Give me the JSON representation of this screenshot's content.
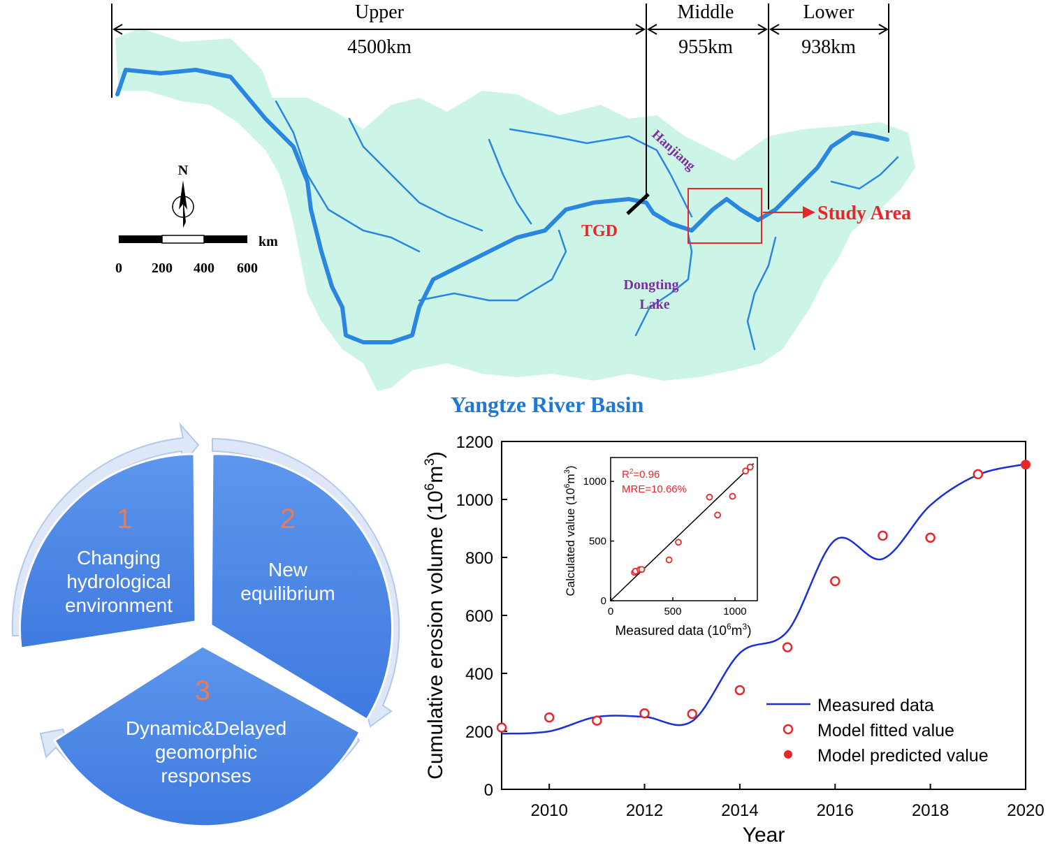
{
  "map": {
    "segments": [
      {
        "label": "Upper",
        "length": "4500km"
      },
      {
        "label": "Middle",
        "length": "955km"
      },
      {
        "label": "Lower",
        "length": "938km"
      }
    ],
    "north": "N",
    "scale_unit": "km",
    "scale_ticks": [
      "0",
      "200",
      "400",
      "600"
    ],
    "dam_label": "TGD",
    "tributary_label": "Hanjiang",
    "lake_label_1": "Dongting",
    "lake_label_2": "Lake",
    "study_area_label": "Study Area",
    "basin_title": "Yangtze River Basin",
    "colors": {
      "basin": "#ccf5e8",
      "river": "#2a86e0",
      "accent_red": "#e8262a",
      "purple": "#7b2fa0",
      "title_blue": "#1f78d1"
    }
  },
  "cycle": {
    "steps": [
      {
        "number": "1",
        "lines": [
          "Changing",
          "hydrological",
          "environment"
        ]
      },
      {
        "number": "2",
        "lines": [
          "New",
          "equilibrium"
        ]
      },
      {
        "number": "3",
        "lines": [
          "Dynamic&Delayed",
          "geomorphic",
          "responses"
        ]
      }
    ],
    "colors": {
      "segment": "#4a86e8",
      "number": "#f07a50",
      "ring": "#c8d8f4"
    }
  },
  "chart_data": [
    {
      "type": "line",
      "ylabel_main": "Cumulative erosion volume (10",
      "ylabel_sup1": "6",
      "ylabel_mid": "m",
      "ylabel_sup2": "3",
      "ylabel_end": ")",
      "xlabel": "Year",
      "xlim": [
        2009,
        2020
      ],
      "ylim": [
        0,
        1200
      ],
      "x_ticks": [
        2010,
        2012,
        2014,
        2016,
        2018,
        2020
      ],
      "y_ticks": [
        0,
        200,
        400,
        600,
        800,
        1000,
        1200
      ],
      "series": [
        {
          "name": "Measured data",
          "style": "line",
          "color": "#1c2fd6",
          "x": [
            2009,
            2010,
            2011,
            2012,
            2013,
            2014,
            2015,
            2016,
            2017,
            2018,
            2019,
            2020
          ],
          "y": [
            192,
            200,
            250,
            250,
            235,
            470,
            545,
            860,
            795,
            980,
            1085,
            1122
          ]
        },
        {
          "name": "Model fitted value",
          "style": "open-circle",
          "color": "#e8262a",
          "x": [
            2009,
            2010,
            2011,
            2012,
            2013,
            2014,
            2015,
            2016,
            2017,
            2018,
            2019
          ],
          "y": [
            213,
            248,
            237,
            262,
            260,
            342,
            490,
            718,
            875,
            868,
            1087
          ]
        },
        {
          "name": "Model predicted value",
          "style": "filled-circle",
          "color": "#e8262a",
          "x": [
            2020
          ],
          "y": [
            1120
          ]
        }
      ],
      "legend": "bottom-right"
    },
    {
      "type": "scatter",
      "xlabel_main": "Measured data (10",
      "xlabel_sup1": "6",
      "xlabel_mid": "m",
      "xlabel_sup2": "3",
      "xlabel_end": ")",
      "ylabel_main": "Calculated value (10",
      "ylabel_sup1": "6",
      "ylabel_mid": "m",
      "ylabel_sup2": "3",
      "ylabel_end": ")",
      "xlim": [
        0,
        1180
      ],
      "ylim": [
        0,
        1200
      ],
      "x_ticks": [
        0,
        500,
        1000
      ],
      "y_ticks": [
        0,
        500,
        1000
      ],
      "annotation_r2_main": "R",
      "annotation_r2_sup": "2",
      "annotation_r2_end": "=0.96",
      "annotation_mre": "MRE=10.66%",
      "points": {
        "x": [
          192,
          200,
          235,
          250,
          470,
          545,
          795,
          860,
          980,
          1085,
          1122
        ],
        "y": [
          237,
          248,
          260,
          262,
          342,
          490,
          868,
          718,
          875,
          1087,
          1120
        ]
      },
      "fit_line": [
        [
          0,
          0
        ],
        [
          1150,
          1150
        ]
      ]
    }
  ]
}
